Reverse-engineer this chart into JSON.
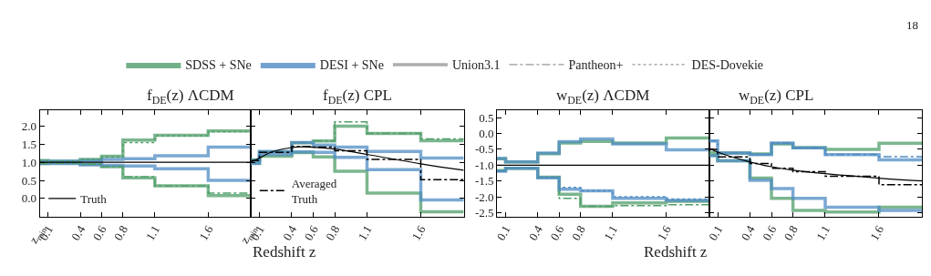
{
  "chart_data": [
    {
      "type": "step",
      "title": "f$_{DE}$(z) ΛCDM",
      "xlabel": "Redshift z",
      "annotations": [
        "18"
      ],
      "legend": "bottom left",
      "x": [
        0.02,
        0.1,
        0.4,
        0.6,
        0.8,
        1.1,
        1.6,
        2.0
      ],
      "xlim": [
        0.02,
        2.0
      ],
      "xticks": [
        {
          "value": 0.02,
          "label": "z$_{min}$"
        },
        0.1,
        0.4,
        0.6,
        0.8,
        1.1,
        1.6
      ],
      "ylim": [
        -0.5,
        2.45
      ],
      "yticks": [
        {
          "value": 0,
          "label": "0.0"
        },
        0.5,
        {
          "value": 1,
          "label": "1.0"
        },
        1.5,
        {
          "value": 2,
          "label": "2.0"
        }
      ],
      "series": [
        {
          "color": "#4f9e69",
          "line_style": "solid",
          "values": [
            1.05,
            1.03,
            1.08,
            1.17,
            1.62,
            1.75,
            1.87,
            1.87
          ]
        },
        {
          "color": "#4f9e69",
          "line_style": "solid",
          "values": [
            0.97,
            0.98,
            0.95,
            0.88,
            0.57,
            0.35,
            0.08,
            0.08
          ]
        },
        {
          "color": "#4f8cc4",
          "line_style": "solid",
          "values": [
            1.03,
            1.03,
            1.05,
            1.08,
            1.1,
            1.18,
            1.42,
            1.42
          ]
        },
        {
          "color": "#4f8cc4",
          "line_style": "solid",
          "values": [
            0.97,
            0.97,
            0.93,
            0.92,
            0.9,
            0.82,
            0.5,
            0.5
          ]
        },
        {
          "color": "#4f9e69",
          "line_style": "dotted",
          "values": [
            1.05,
            1.03,
            1.08,
            1.15,
            1.55,
            1.73,
            1.85,
            1.85
          ]
        },
        {
          "color": "#4f9e69",
          "line_style": "dashed",
          "values": [
            0.97,
            0.98,
            0.95,
            0.88,
            0.6,
            0.35,
            0.15,
            0.15
          ]
        },
        {
          "name": "Truth",
          "type": "line",
          "color": "#000000",
          "line_style": "solid",
          "x": [
            0.02,
            2.0
          ],
          "values": [
            1.0,
            1.0
          ]
        }
      ]
    },
    {
      "type": "step",
      "title": "f$_{DE}$(z) CPL",
      "legend": "bottom left",
      "tick_labels": "x",
      "x": [
        0.02,
        0.1,
        0.4,
        0.6,
        0.8,
        1.1,
        1.6,
        2.0
      ],
      "xlim": [
        0.02,
        2.0
      ],
      "xticks": [
        {
          "value": 0.02,
          "label": "z$_{min}$"
        },
        0.1,
        0.4,
        0.6,
        0.8,
        1.1,
        1.6
      ],
      "ylim": [
        -0.5,
        2.45
      ],
      "yticks": [
        0,
        0.5,
        1,
        1.5,
        2
      ],
      "series": [
        {
          "color": "#4f9e69",
          "line_style": "solid",
          "values": [
            1.07,
            1.29,
            1.54,
            1.59,
            2.0,
            1.8,
            1.6,
            1.6
          ]
        },
        {
          "color": "#4f9e69",
          "line_style": "dashed",
          "values": [
            1.07,
            1.29,
            1.54,
            1.59,
            2.12,
            1.8,
            1.65,
            1.65
          ]
        },
        {
          "color": "#4f9e69",
          "line_style": "solid",
          "values": [
            0.98,
            1.17,
            1.27,
            1.15,
            0.75,
            0.15,
            -0.37,
            -0.37
          ]
        },
        {
          "color": "#4f8cc4",
          "line_style": "solid",
          "values": [
            1.05,
            1.3,
            1.55,
            1.48,
            1.42,
            1.3,
            1.12,
            1.12
          ]
        },
        {
          "color": "#4f8cc4",
          "line_style": "solid",
          "values": [
            0.97,
            1.22,
            1.29,
            1.28,
            1.14,
            0.8,
            -0.04,
            -0.04
          ]
        },
        {
          "type": "line",
          "color": "#000000",
          "line_style": "solid",
          "x": [
            0.02,
            0.1,
            0.2,
            0.3,
            0.4,
            0.5,
            0.6,
            0.8,
            1.1,
            1.6,
            2.0
          ],
          "values": [
            1.0,
            1.12,
            1.27,
            1.36,
            1.41,
            1.43,
            1.42,
            1.37,
            1.22,
            0.96,
            0.78
          ]
        },
        {
          "name": "Averaged\nTruth",
          "color": "#000000",
          "line_style": "dashed",
          "values": [
            1.05,
            1.28,
            1.44,
            1.42,
            1.32,
            1.08,
            0.52,
            0.52
          ]
        }
      ]
    },
    {
      "type": "step",
      "title": "w$_{DE}$(z) ΛCDM",
      "xlabel": "Redshift z",
      "legend": "top left",
      "x": [
        0.02,
        0.1,
        0.4,
        0.6,
        0.8,
        1.1,
        1.6,
        2.0
      ],
      "xlim": [
        0.02,
        2.0
      ],
      "xticks": [
        0.1,
        0.4,
        0.6,
        0.8,
        1.1,
        1.6
      ],
      "ylim": [
        -2.62,
        0.74
      ],
      "yticks": [
        -2.5,
        {
          "value": -2,
          "label": "-2.0"
        },
        -1.5,
        {
          "value": -1,
          "label": "-1.0"
        },
        -0.5,
        {
          "value": 0,
          "label": "0.0"
        },
        0.5
      ],
      "series": [
        {
          "color": "#4f9e69",
          "line_style": "solid",
          "values": [
            -0.8,
            -0.9,
            -0.64,
            -0.3,
            -0.25,
            -0.3,
            -0.14,
            -0.14
          ]
        },
        {
          "color": "#4f9e69",
          "line_style": "solid",
          "values": [
            -1.17,
            -1.1,
            -1.38,
            -1.92,
            -2.3,
            -2.19,
            -2.14,
            -2.14
          ]
        },
        {
          "color": "#4f9e69",
          "line_style": "dashed",
          "values": [
            -1.17,
            -1.1,
            -1.38,
            -2.05,
            -2.3,
            -2.28,
            -2.25,
            -2.25
          ]
        },
        {
          "color": "#4f8cc4",
          "line_style": "solid",
          "values": [
            -0.79,
            -0.9,
            -0.62,
            -0.26,
            -0.17,
            -0.33,
            -0.52,
            -0.52
          ]
        },
        {
          "color": "#4f8cc4",
          "line_style": "solid",
          "values": [
            -1.19,
            -1.1,
            -1.4,
            -1.76,
            -1.81,
            -2.05,
            -2.11,
            -2.11
          ]
        },
        {
          "color": "#4f8cc4",
          "line_style": "dotted",
          "values": [
            -1.19,
            -1.1,
            -1.4,
            -1.7,
            -1.81,
            -2.0,
            -2.07,
            -2.07
          ]
        },
        {
          "type": "line",
          "color": "#000000",
          "line_style": "solid",
          "x": [
            0.02,
            2.0
          ],
          "values": [
            -1.0,
            -1.0
          ]
        },
        {
          "name": "SDSS + SNe",
          "type": "area",
          "color": "#4f9e69",
          "values": [
            null,
            null,
            null,
            null,
            null,
            null,
            null,
            null
          ]
        },
        {
          "name": "DESI + SNe",
          "type": "area",
          "color": "#4f8cc4",
          "values": [
            null,
            null,
            null,
            null,
            null,
            null,
            null,
            null
          ]
        },
        {
          "name": "Union3.1",
          "type": "line",
          "color": "#999999",
          "line_style": "solid",
          "values": [
            null,
            null,
            null,
            null,
            null,
            null,
            null,
            null
          ]
        },
        {
          "name": "Pantheon+",
          "type": "line",
          "color": "#999999",
          "line_style": "dashed",
          "values": [
            null,
            null,
            null,
            null,
            null,
            null,
            null,
            null
          ]
        },
        {
          "name": "DES-Dovekie",
          "type": "line",
          "color": "#999999",
          "line_style": "dotted",
          "values": [
            null,
            null,
            null,
            null,
            null,
            null,
            null,
            null
          ]
        }
      ]
    },
    {
      "type": "step",
      "title": "w$_{DE}$(z) CPL",
      "tick_labels": "x",
      "x": [
        0.02,
        0.1,
        0.4,
        0.6,
        0.8,
        1.1,
        1.6,
        2.0
      ],
      "xlim": [
        0.02,
        2.0
      ],
      "xticks": [
        0.1,
        0.4,
        0.6,
        0.8,
        1.1,
        1.6
      ],
      "ylim": [
        -2.62,
        0.74
      ],
      "yticks": [
        -2.5,
        -2,
        -1.5,
        -1,
        -0.5,
        0,
        0.5
      ],
      "series": [
        {
          "color": "#4f9e69",
          "line_style": "solid",
          "values": [
            -0.6,
            -0.62,
            -0.65,
            -0.33,
            -0.45,
            -0.5,
            -0.31,
            -0.31
          ]
        },
        {
          "color": "#4f9e69",
          "line_style": "solid",
          "values": [
            -0.7,
            -0.86,
            -1.41,
            -2.05,
            -2.43,
            -2.48,
            -2.33,
            -2.33
          ]
        },
        {
          "color": "#4f8cc4",
          "line_style": "solid",
          "values": [
            -0.24,
            -0.62,
            -0.67,
            -0.3,
            -0.45,
            -0.67,
            -0.83,
            -0.83
          ]
        },
        {
          "color": "#4f8cc4",
          "line_style": "dashed",
          "values": [
            -0.24,
            -0.62,
            -0.67,
            -0.3,
            -0.45,
            -0.67,
            -0.73,
            -0.73
          ]
        },
        {
          "color": "#4f8cc4",
          "line_style": "solid",
          "values": [
            -0.7,
            -0.86,
            -1.48,
            -1.74,
            -2.05,
            -2.33,
            -2.43,
            -2.43
          ]
        },
        {
          "type": "line",
          "color": "#000000",
          "line_style": "solid",
          "x": [
            0.02,
            0.1,
            0.4,
            0.6,
            0.8,
            1.1,
            1.6,
            2.0
          ],
          "values": [
            -0.46,
            -0.59,
            -0.9,
            -1.05,
            -1.16,
            -1.27,
            -1.41,
            -1.5
          ]
        },
        {
          "color": "#000000",
          "line_style": "dashed",
          "values": [
            -0.5,
            -0.74,
            -0.95,
            -1.1,
            -1.21,
            -1.35,
            -1.62,
            -1.62
          ]
        }
      ]
    }
  ]
}
